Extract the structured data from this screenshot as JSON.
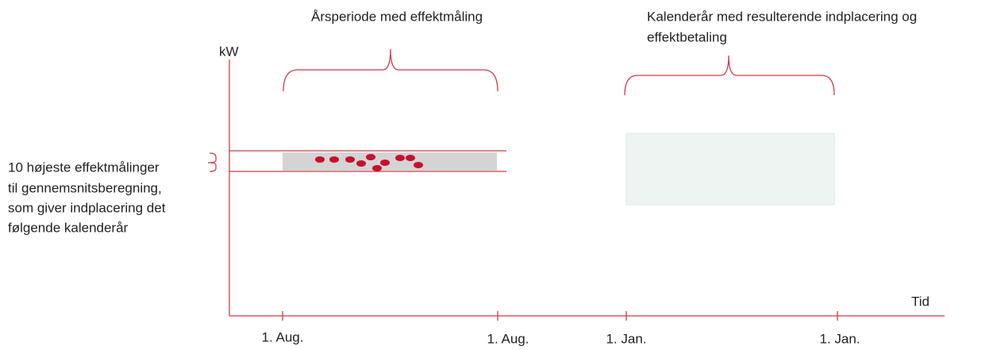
{
  "y_axis_label": "kW",
  "x_axis_label": "Tid",
  "period_label": "Årsperiode med effektmåling",
  "calendar_label": [
    "Kalenderår med resulterende indplacering og",
    "effektbetaling"
  ],
  "measurement_label": [
    "10 højeste effektmålinger",
    "til gennemsnitsberegning,",
    "som giver indplacering det",
    "følgende kalenderår"
  ],
  "x_ticks": [
    "1. Aug.",
    "1. Aug.",
    "1. Jan.",
    "1. Jan."
  ]
}
